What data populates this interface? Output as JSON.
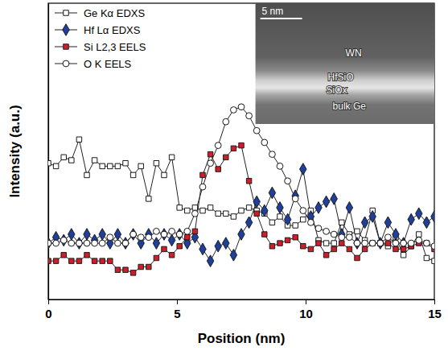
{
  "chart_data": {
    "type": "line",
    "x_label": "Position (nm)",
    "y_label": "Intensity (a.u.)",
    "x": [
      0,
      0.3,
      0.6,
      0.9,
      1.2,
      1.5,
      1.8,
      2.1,
      2.4,
      2.7,
      3.0,
      3.3,
      3.6,
      3.9,
      4.2,
      4.5,
      4.8,
      5.1,
      5.4,
      5.7,
      6.0,
      6.3,
      6.6,
      6.9,
      7.2,
      7.5,
      7.8,
      8.1,
      8.4,
      8.7,
      9.0,
      9.3,
      9.6,
      9.9,
      10.2,
      10.5,
      10.8,
      11.1,
      11.4,
      11.7,
      12.0,
      12.3,
      12.6,
      12.9,
      13.2,
      13.5,
      13.8,
      14.1,
      14.4,
      14.7,
      15.0
    ],
    "series": [
      {
        "name": "Ge Kα EDXS",
        "color": "#000000",
        "marker": "open-square",
        "values": [
          46,
          45,
          48,
          47,
          54,
          42,
          47,
          45,
          45,
          45,
          46,
          42,
          45,
          34,
          46,
          42,
          48,
          31,
          30,
          31,
          30,
          31,
          29,
          29,
          28,
          30,
          31,
          30,
          29,
          26,
          28,
          25,
          25,
          27,
          30,
          20,
          19,
          19,
          26,
          22,
          23,
          20,
          30,
          19,
          18,
          21,
          15,
          18,
          22,
          14,
          13
        ]
      },
      {
        "name": "Hf Lα EDXS",
        "color": "#1f3f99",
        "marker": "diamond",
        "values": [
          19,
          21,
          20,
          22,
          19,
          22,
          20,
          22,
          19,
          22,
          19,
          22,
          19,
          22,
          19,
          22,
          20,
          22,
          19,
          21,
          17,
          13,
          18,
          19,
          15,
          22,
          26,
          33,
          30,
          36,
          31,
          27,
          35,
          44,
          28,
          31,
          33,
          34,
          22,
          31,
          19,
          26,
          28,
          19,
          26,
          22,
          19,
          27,
          29,
          26,
          28
        ]
      },
      {
        "name": "Si L2,3 EELS",
        "color": "#cc1f2a",
        "marker": "square",
        "values": [
          13,
          13,
          15,
          13,
          13,
          15,
          13,
          13,
          13,
          10,
          10,
          9,
          11,
          11,
          14,
          17,
          15,
          18,
          21,
          23,
          42,
          49,
          44,
          48,
          51,
          52,
          40,
          29,
          22,
          18,
          19,
          20,
          21,
          18,
          17,
          19,
          15,
          17,
          19,
          17,
          14,
          17,
          19,
          19,
          19,
          17,
          17,
          18,
          19,
          19,
          17
        ]
      },
      {
        "name": "O K EELS",
        "color": "#000000",
        "marker": "open-circle",
        "values": [
          19,
          19,
          20,
          19,
          19,
          19,
          19,
          19,
          21,
          19,
          19,
          22,
          21,
          21,
          23,
          22,
          23,
          22,
          23,
          29,
          38,
          46,
          52,
          60,
          64,
          65,
          62,
          57,
          53,
          49,
          45,
          40,
          34,
          30,
          26,
          24,
          23,
          22,
          21,
          21,
          19,
          19,
          19,
          19,
          21,
          19,
          19,
          19,
          20,
          19,
          18
        ]
      }
    ],
    "xlim": [
      0,
      15
    ],
    "xticks": [
      0,
      5,
      10,
      15
    ],
    "ylim": [
      0,
      100
    ],
    "tick_labels": "x",
    "legend": "top-left",
    "inset": {
      "scale_bar": "5 nm",
      "labels": [
        "WN",
        "HfSiO",
        "SiOx",
        "bulk Ge"
      ]
    }
  }
}
